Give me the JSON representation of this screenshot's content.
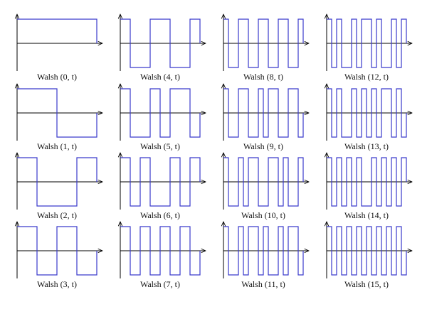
{
  "panels": [
    {
      "caption": "Walsh (0, t)"
    },
    {
      "caption": "Walsh (1, t)"
    },
    {
      "caption": "Walsh (2, t)"
    },
    {
      "caption": "Walsh (3, t)"
    },
    {
      "caption": "Walsh (4, t)"
    },
    {
      "caption": "Walsh (5, t)"
    },
    {
      "caption": "Walsh (6, t)"
    },
    {
      "caption": "Walsh (7, t)"
    },
    {
      "caption": "Walsh (8, t)"
    },
    {
      "caption": "Walsh (9, t)"
    },
    {
      "caption": "Walsh (10, t)"
    },
    {
      "caption": "Walsh (11, t)"
    },
    {
      "caption": "Walsh (12, t)"
    },
    {
      "caption": "Walsh (13, t)"
    },
    {
      "caption": "Walsh (14, t)"
    },
    {
      "caption": "Walsh (15, t)"
    }
  ]
}
